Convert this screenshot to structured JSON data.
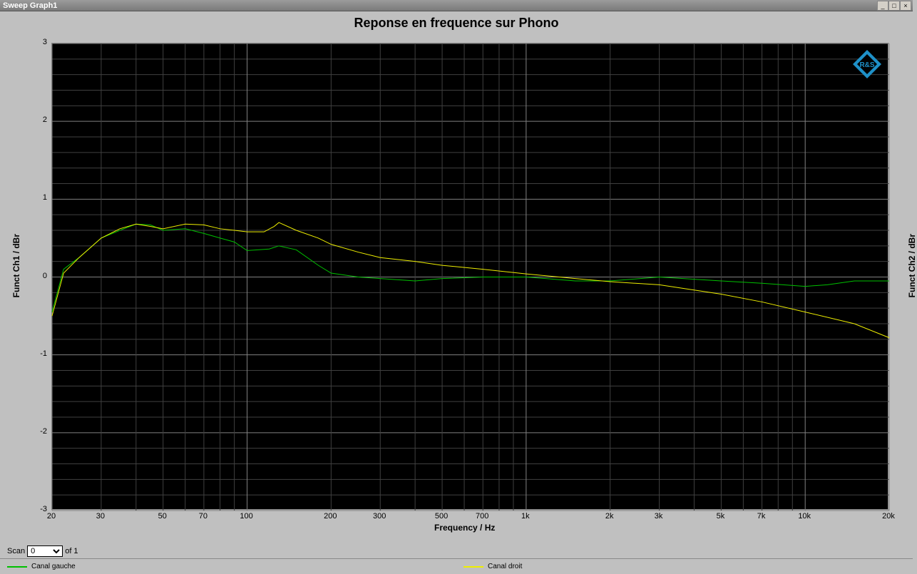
{
  "window": {
    "title": "Sweep Graph1"
  },
  "chart": {
    "type": "line",
    "title": "Reponse en frequence sur Phono",
    "title_fontsize": 18,
    "background_color": "#000000",
    "page_background": "#c0c0c0",
    "grid_color_major": "#808080",
    "grid_color_minor": "#404040",
    "text_color": "#000000",
    "ylabel_left": "Funct Ch1 / dBr",
    "ylabel_right": "Funct Ch2 / dBr",
    "xlabel": "Frequency / Hz",
    "ylim": [
      -3,
      3
    ],
    "yticks": [
      -3,
      -2,
      -1,
      0,
      1,
      2,
      3
    ],
    "xlim": [
      20,
      20000
    ],
    "xscale": "log",
    "xticks": [
      20,
      30,
      50,
      70,
      100,
      200,
      300,
      500,
      700,
      "1k",
      "2k",
      "3k",
      "5k",
      "7k",
      "10k",
      "20k"
    ],
    "xtick_values": [
      20,
      30,
      50,
      70,
      100,
      200,
      300,
      500,
      700,
      1000,
      2000,
      3000,
      5000,
      7000,
      10000,
      20000
    ],
    "xminor": [
      40,
      60,
      80,
      90,
      400,
      600,
      800,
      900,
      4000,
      6000,
      8000,
      9000
    ],
    "logo_color": "#1e90c8",
    "series": [
      {
        "name": "Canal gauche",
        "color": "#00c000",
        "line_width": 1,
        "points": [
          [
            20,
            -0.45
          ],
          [
            22,
            0.1
          ],
          [
            25,
            0.25
          ],
          [
            30,
            0.5
          ],
          [
            35,
            0.6
          ],
          [
            40,
            0.68
          ],
          [
            45,
            0.67
          ],
          [
            50,
            0.6
          ],
          [
            60,
            0.62
          ],
          [
            70,
            0.56
          ],
          [
            80,
            0.5
          ],
          [
            90,
            0.45
          ],
          [
            100,
            0.34
          ],
          [
            120,
            0.36
          ],
          [
            130,
            0.4
          ],
          [
            150,
            0.35
          ],
          [
            180,
            0.15
          ],
          [
            200,
            0.05
          ],
          [
            250,
            0.0
          ],
          [
            300,
            -0.02
          ],
          [
            400,
            -0.05
          ],
          [
            500,
            -0.02
          ],
          [
            700,
            0.0
          ],
          [
            1000,
            0.0
          ],
          [
            1500,
            -0.05
          ],
          [
            2000,
            -0.05
          ],
          [
            3000,
            0.0
          ],
          [
            5000,
            -0.05
          ],
          [
            7000,
            -0.08
          ],
          [
            10000,
            -0.12
          ],
          [
            12000,
            -0.1
          ],
          [
            15000,
            -0.05
          ],
          [
            20000,
            -0.05
          ]
        ]
      },
      {
        "name": "Canal droit",
        "color": "#eeee00",
        "line_width": 1,
        "points": [
          [
            20,
            -0.5
          ],
          [
            22,
            0.05
          ],
          [
            25,
            0.25
          ],
          [
            30,
            0.5
          ],
          [
            35,
            0.62
          ],
          [
            40,
            0.68
          ],
          [
            45,
            0.65
          ],
          [
            50,
            0.62
          ],
          [
            60,
            0.68
          ],
          [
            70,
            0.67
          ],
          [
            80,
            0.62
          ],
          [
            90,
            0.6
          ],
          [
            100,
            0.58
          ],
          [
            115,
            0.58
          ],
          [
            125,
            0.65
          ],
          [
            130,
            0.7
          ],
          [
            150,
            0.6
          ],
          [
            180,
            0.5
          ],
          [
            200,
            0.42
          ],
          [
            250,
            0.32
          ],
          [
            300,
            0.25
          ],
          [
            400,
            0.2
          ],
          [
            500,
            0.15
          ],
          [
            700,
            0.1
          ],
          [
            1000,
            0.04
          ],
          [
            1500,
            -0.02
          ],
          [
            2000,
            -0.06
          ],
          [
            3000,
            -0.1
          ],
          [
            5000,
            -0.22
          ],
          [
            7000,
            -0.32
          ],
          [
            10000,
            -0.45
          ],
          [
            15000,
            -0.6
          ],
          [
            20000,
            -0.78
          ]
        ]
      }
    ]
  },
  "bottom": {
    "scan_label": "Scan",
    "scan_value": "0",
    "scan_of": "of 1"
  },
  "legend": {
    "items": [
      "Canal gauche",
      "Canal droit"
    ]
  }
}
